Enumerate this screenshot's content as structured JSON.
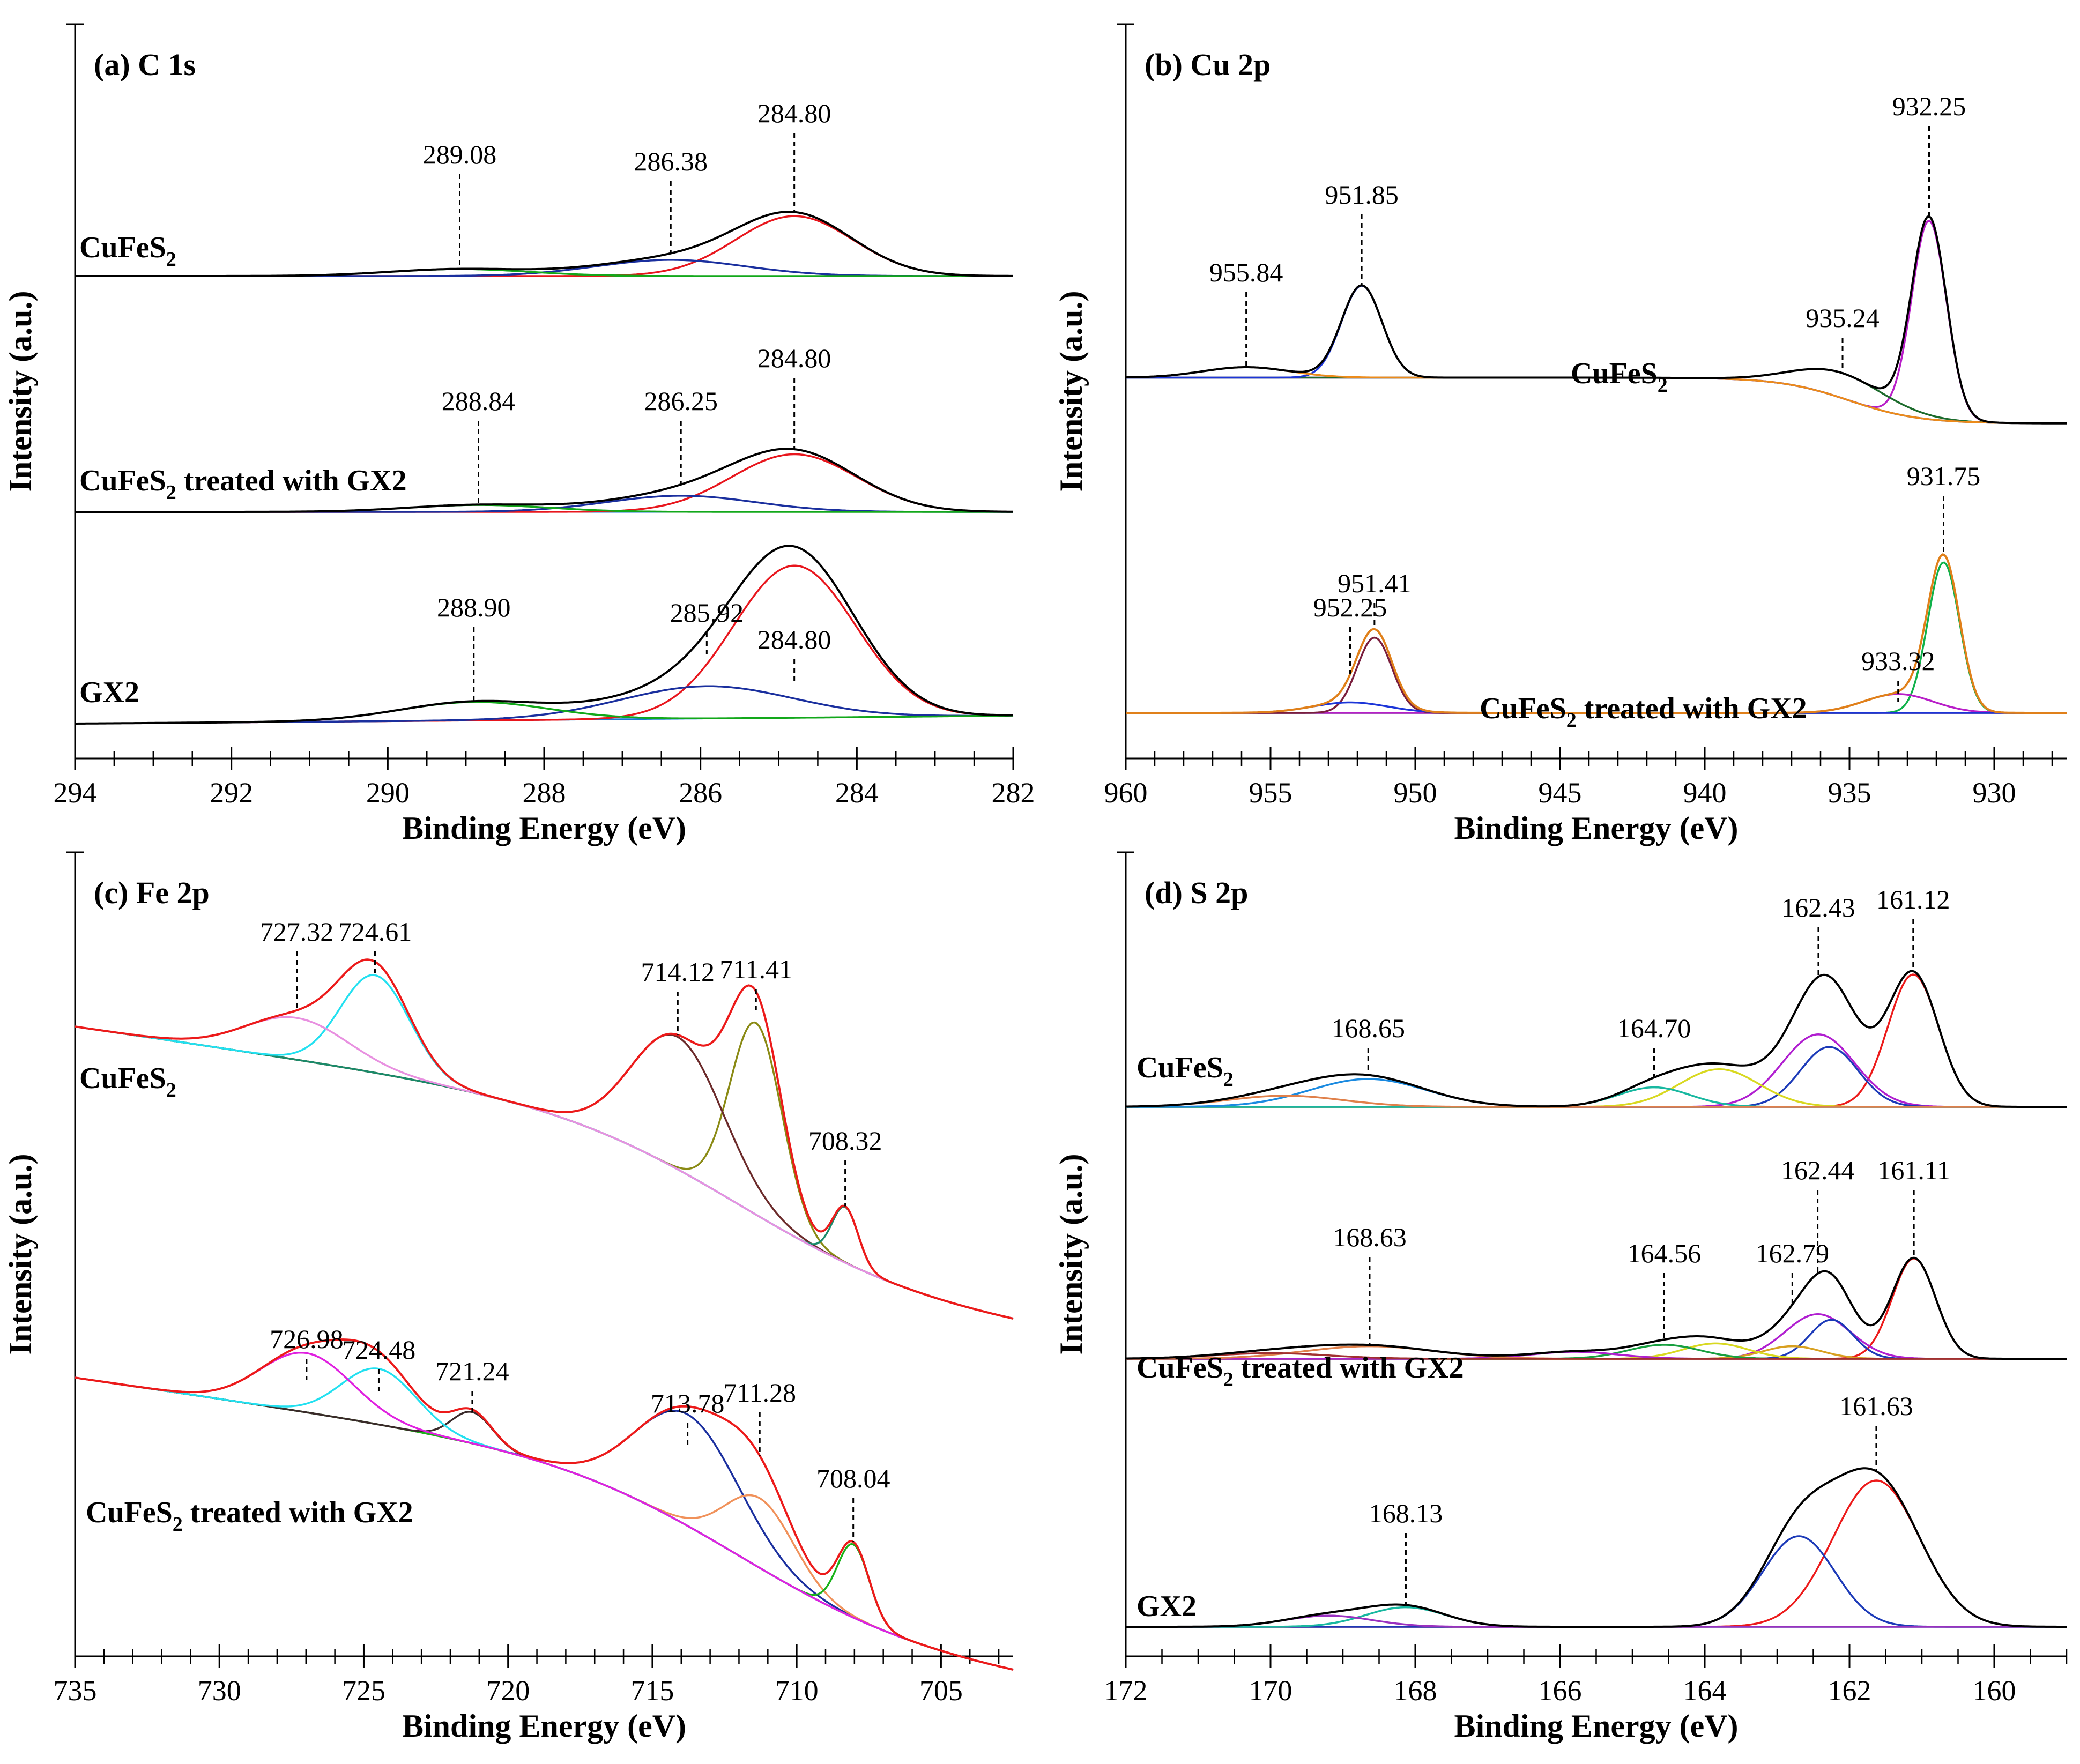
{
  "chart_data": [
    {
      "type": "line",
      "panel": "a",
      "title": "(a) C 1s",
      "xlabel": "Binding Energy (eV)",
      "ylabel": "Intensity (a.u.)",
      "xlim": [
        294,
        282
      ],
      "x_reversed": true,
      "xticks": [
        294,
        292,
        290,
        288,
        286,
        284,
        282
      ],
      "samples": [
        {
          "name": "CuFeS",
          "sub": "2",
          "suffix": "",
          "baseline_y": 0.0,
          "base_color": "#12a81a",
          "peaks": [
            {
              "center": 284.8,
              "amp": 0.26,
              "width": 0.75,
              "color": "#e8161d"
            },
            {
              "center": 286.38,
              "amp": 0.07,
              "width": 0.95,
              "color": "#1a2f9e"
            },
            {
              "center": 289.08,
              "amp": 0.03,
              "width": 0.9,
              "color": "#12a81a"
            }
          ],
          "labels": [
            "284.80",
            "286.38",
            "289.08"
          ]
        },
        {
          "name": "CuFeS",
          "sub": "2",
          "suffix": " treated with GX2",
          "baseline_y": 1.0,
          "base_color": "#1a7ad0",
          "peaks": [
            {
              "center": 284.8,
              "amp": 0.25,
              "width": 0.8,
              "color": "#e8161d"
            },
            {
              "center": 286.25,
              "amp": 0.07,
              "width": 0.95,
              "color": "#1a2f9e"
            },
            {
              "center": 288.84,
              "amp": 0.03,
              "width": 0.9,
              "color": "#12a81a"
            }
          ],
          "labels": [
            "284.80",
            "286.25",
            "288.84"
          ]
        },
        {
          "name": "GX2",
          "sub": "",
          "suffix": "",
          "baseline_y": 1.9,
          "base_color": "#1a7ad0",
          "peaks": [
            {
              "center": 284.8,
              "amp": 0.66,
              "width": 0.78,
              "color": "#e8161d"
            },
            {
              "center": 285.92,
              "amp": 0.14,
              "width": 1.1,
              "color": "#1a2f9e"
            },
            {
              "center": 288.9,
              "amp": 0.08,
              "width": 0.95,
              "color": "#12a81a"
            }
          ],
          "labels": [
            "284.80",
            "285.92",
            "288.90"
          ]
        }
      ]
    },
    {
      "type": "line",
      "panel": "b",
      "title": "(b) Cu 2p",
      "xlabel": "Binding Energy (eV)",
      "ylabel": "Intensity (a.u.)",
      "xlim": [
        960,
        927.5
      ],
      "x_reversed": true,
      "xticks": [
        960,
        955,
        950,
        945,
        940,
        935,
        930
      ],
      "samples": [
        {
          "name": "CuFeS",
          "sub": "2",
          "suffix": "",
          "peaks": [
            {
              "center": 932.25,
              "amp": 0.95,
              "width": 0.6,
              "color": "#b81ec8"
            },
            {
              "center": 935.24,
              "amp": 0.12,
              "width": 1.6,
              "color": "#1c6b2c"
            },
            {
              "center": 951.85,
              "amp": 0.44,
              "width": 0.7,
              "color": "#1c35d8"
            },
            {
              "center": 955.84,
              "amp": 0.05,
              "width": 1.5,
              "color": "#ec8b1a"
            }
          ],
          "labels": [
            "932.25",
            "935.24",
            "951.85",
            "955.84"
          ]
        },
        {
          "name": "CuFeS",
          "sub": "2",
          "suffix": " treated with GX2",
          "peaks": [
            {
              "center": 931.75,
              "amp": 0.72,
              "width": 0.55,
              "color": "#0fb14a"
            },
            {
              "center": 933.32,
              "amp": 0.09,
              "width": 1.2,
              "color": "#b81ec8"
            },
            {
              "center": 951.41,
              "amp": 0.36,
              "width": 0.6,
              "color": "#7a1e3d"
            },
            {
              "center": 952.25,
              "amp": 0.05,
              "width": 1.3,
              "color": "#1c35d8"
            }
          ],
          "labels": [
            "931.75",
            "933.32",
            "951.41",
            "952.25"
          ]
        }
      ]
    },
    {
      "type": "line",
      "panel": "c",
      "title": "(c) Fe 2p",
      "xlabel": "Binding Energy (eV)",
      "ylabel": "Intensity (a.u.)",
      "xlim": [
        735,
        702.5
      ],
      "x_reversed": true,
      "xticks": [
        735,
        730,
        725,
        720,
        715,
        710,
        705
      ],
      "samples": [
        {
          "name": "CuFeS",
          "sub": "2",
          "suffix": "",
          "peaks": [
            {
              "center": 711.41,
              "amp": 0.55,
              "width": 0.9,
              "color": "#8a8a14"
            },
            {
              "center": 714.12,
              "amp": 0.38,
              "width": 1.6,
              "color": "#6b2a2a"
            },
            {
              "center": 708.32,
              "amp": 0.16,
              "width": 0.45,
              "color": "#1a8a6a"
            },
            {
              "center": 724.61,
              "amp": 0.28,
              "width": 1.2,
              "color": "#22e0f0"
            },
            {
              "center": 727.32,
              "amp": 0.12,
              "width": 1.8,
              "color": "#e890e0"
            }
          ],
          "labels": [
            "711.41",
            "714.12",
            "708.32",
            "724.61",
            "727.32"
          ]
        },
        {
          "name": "CuFeS",
          "sub": "2",
          "suffix": " treated with GX2",
          "peaks": [
            {
              "center": 713.78,
              "amp": 0.32,
              "width": 1.8,
              "color": "#1a2f9e"
            },
            {
              "center": 711.28,
              "amp": 0.2,
              "width": 1.2,
              "color": "#f0915a"
            },
            {
              "center": 708.04,
              "amp": 0.21,
              "width": 0.55,
              "color": "#19b219"
            },
            {
              "center": 721.24,
              "amp": 0.09,
              "width": 0.7,
              "color": "#3a2a2a"
            },
            {
              "center": 724.48,
              "amp": 0.16,
              "width": 1.3,
              "color": "#22e0f0"
            },
            {
              "center": 726.98,
              "amp": 0.17,
              "width": 1.6,
              "color": "#e020e0"
            }
          ],
          "labels": [
            "713.78",
            "711.28",
            "708.04",
            "721.24",
            "724.48",
            "726.98"
          ]
        }
      ]
    },
    {
      "type": "line",
      "panel": "d",
      "title": "(d) S 2p",
      "xlabel": "Binding Energy (eV)",
      "ylabel": "Intensity (a.u.)",
      "xlim": [
        172,
        159
      ],
      "x_reversed": true,
      "xticks": [
        172,
        170,
        168,
        166,
        164,
        162,
        160
      ],
      "samples": [
        {
          "name": "CuFeS",
          "sub": "2",
          "suffix": "",
          "peaks": [
            {
              "center": 161.12,
              "amp": 0.95,
              "width": 0.35,
              "color": "#ec1a1a"
            },
            {
              "center": 162.43,
              "amp": 0.52,
              "width": 0.5,
              "color": "#b01ed0"
            },
            {
              "center": 162.28,
              "amp": 0.43,
              "width": 0.4,
              "color": "#1c3ab8"
            },
            {
              "center": 163.8,
              "amp": 0.27,
              "width": 0.55,
              "color": "#d8d820"
            },
            {
              "center": 164.7,
              "amp": 0.14,
              "width": 0.5,
              "color": "#18b8a0"
            },
            {
              "center": 168.65,
              "amp": 0.2,
              "width": 0.8,
              "color": "#1a8ae0"
            },
            {
              "center": 169.8,
              "amp": 0.08,
              "width": 0.8,
              "color": "#e0804a"
            }
          ],
          "labels": [
            "161.12",
            "162.43",
            "164.70",
            "168.65"
          ]
        },
        {
          "name": "CuFeS",
          "sub": "2",
          "suffix": " treated with GX2",
          "peaks": [
            {
              "center": 161.11,
              "amp": 0.72,
              "width": 0.3,
              "color": "#ec1a1a"
            },
            {
              "center": 162.44,
              "amp": 0.32,
              "width": 0.45,
              "color": "#b01ed0"
            },
            {
              "center": 162.25,
              "amp": 0.28,
              "width": 0.3,
              "color": "#1c3ab8"
            },
            {
              "center": 162.79,
              "amp": 0.09,
              "width": 0.4,
              "color": "#d8a020"
            },
            {
              "center": 163.85,
              "amp": 0.11,
              "width": 0.45,
              "color": "#d8d820"
            },
            {
              "center": 164.56,
              "amp": 0.1,
              "width": 0.5,
              "color": "#18a040"
            },
            {
              "center": 165.8,
              "amp": 0.05,
              "width": 0.6,
              "color": "#b01ed0"
            },
            {
              "center": 168.63,
              "amp": 0.09,
              "width": 0.9,
              "color": "#e0804a"
            },
            {
              "center": 170.0,
              "amp": 0.04,
              "width": 0.8,
              "color": "#a03030"
            }
          ],
          "labels": [
            "161.11",
            "162.44",
            "162.79",
            "164.56",
            "168.63"
          ]
        },
        {
          "name": "GX2",
          "sub": "",
          "suffix": "",
          "peaks": [
            {
              "center": 161.63,
              "amp": 1.05,
              "width": 0.6,
              "color": "#ec1a1a"
            },
            {
              "center": 162.7,
              "amp": 0.65,
              "width": 0.5,
              "color": "#1c3ab8"
            },
            {
              "center": 168.13,
              "amp": 0.14,
              "width": 0.55,
              "color": "#18b8a0"
            },
            {
              "center": 169.2,
              "amp": 0.08,
              "width": 0.6,
              "color": "#9a30c0"
            }
          ],
          "labels": [
            "161.63",
            "168.13"
          ]
        }
      ]
    }
  ]
}
